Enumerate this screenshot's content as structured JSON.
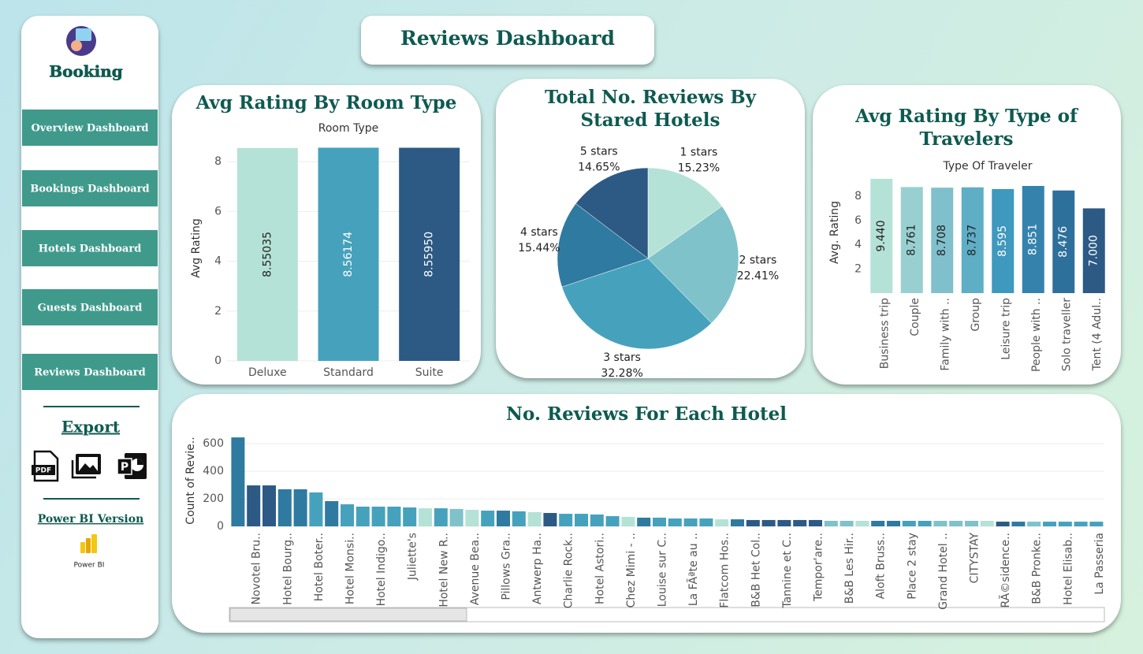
{
  "header": {
    "title": "Reviews Dashboard"
  },
  "sidebar": {
    "brand": "Booking",
    "nav": [
      "Overview Dashboard",
      "Bookings Dashboard",
      "Hotels Dashboard",
      "Guests Dashboard",
      "Reviews Dashboard"
    ],
    "export": {
      "title": "Export",
      "pdf": "PDF"
    },
    "powerbi": {
      "title": "Power BI Version",
      "logo_label": "Power BI"
    }
  },
  "chart_data": [
    {
      "type": "bar",
      "title": "Avg Rating By Room Type",
      "x_label": "Room Type",
      "y_label": "Avg Rating",
      "categories": [
        "Deluxe",
        "Standard",
        "Suite"
      ],
      "values": [
        8.55035,
        8.56174,
        8.5595
      ],
      "value_labels": [
        "8.55035",
        "8.56174",
        "8.55950"
      ],
      "colors": [
        "#b5e2d6",
        "#46a2bc",
        "#2c5a85"
      ],
      "ylim": [
        0,
        9
      ],
      "yticks": [
        0,
        2,
        4,
        6,
        8
      ],
      "grid": true
    },
    {
      "type": "pie",
      "title": "Total No. Reviews By Stared Hotels",
      "categories": [
        "1 stars",
        "2 stars",
        "3 stars",
        "4 stars",
        "5 stars"
      ],
      "values": [
        15.23,
        22.41,
        32.28,
        15.44,
        14.65
      ],
      "value_labels": [
        "15.23%",
        "22.41%",
        "32.28%",
        "15.44%",
        "14.65%"
      ],
      "colors": [
        "#b5e2d6",
        "#7fc2ca",
        "#46a2bc",
        "#2f7aa0",
        "#2c5a85"
      ]
    },
    {
      "type": "bar",
      "title": "Avg Rating By Type of Travelers",
      "x_label": "Type Of Traveler",
      "y_label": "Avg. Rating",
      "categories": [
        "Business trip",
        "Couple",
        "Family with ..",
        "Group",
        "Leisure trip",
        "People with ..",
        "Solo traveller",
        "Tent (4 Adul.."
      ],
      "values": [
        9.44,
        8.761,
        8.708,
        8.737,
        8.595,
        8.851,
        8.476,
        7.0
      ],
      "value_labels": [
        "9.440",
        "8.761",
        "8.708",
        "8.737",
        "8.595",
        "8.851",
        "8.476",
        "7.000"
      ],
      "colors": [
        "#b5e2d6",
        "#98d0d2",
        "#7fc0cc",
        "#5eaec6",
        "#3f98be",
        "#3583ad",
        "#2e709c",
        "#2c5a85"
      ],
      "ylim": [
        0,
        9.5
      ],
      "yticks": [
        2,
        4,
        6,
        8
      ],
      "grid": false
    },
    {
      "type": "bar",
      "title": "No. Reviews For Each Hotel",
      "y_label": "Count of Revie..",
      "categories": [
        null,
        "Novotel Bru..",
        null,
        "Hotel Bourg..",
        null,
        "Hotel Boter..",
        null,
        "Hotel Monsi..",
        null,
        "Hotel Indigo..",
        null,
        "Juliette's",
        null,
        "Hotel New R..",
        null,
        "Avenue Bea..",
        null,
        "Pillows Gra..",
        null,
        "Antwerp Ha..",
        null,
        "Charlie Rock..",
        null,
        "Hotel Astori..",
        null,
        "Chez Mimi - ..",
        null,
        "Louise sur C..",
        null,
        "La FÃªte au ..",
        null,
        "Flatcom Hos..",
        null,
        "B&B Het Col..",
        null,
        "Tannine et C..",
        null,
        "Tempor'are..",
        null,
        "B&B Les Hir..",
        null,
        "Aloft Bruss..",
        null,
        "Place 2 stay",
        null,
        "Grand Hotel ..",
        null,
        "CITYSTAY",
        null,
        "RÃ©sidence..",
        null,
        "B&B Pronke..",
        null,
        "Hotel Elisab..",
        null,
        "La Passeria"
      ],
      "values": [
        645,
        297,
        297,
        269,
        269,
        246,
        183,
        160,
        143,
        143,
        143,
        137,
        131,
        131,
        126,
        120,
        114,
        114,
        109,
        103,
        97,
        91,
        91,
        86,
        74,
        69,
        63,
        63,
        57,
        57,
        57,
        51,
        51,
        46,
        46,
        46,
        46,
        46,
        40,
        40,
        40,
        40,
        40,
        40,
        40,
        40,
        40,
        40,
        40,
        34,
        34,
        34,
        34,
        34,
        34,
        34
      ],
      "colors": [
        "#2f7aa0",
        "#2c5a85",
        "#2c5a85",
        "#2f7aa0",
        "#2f7aa0",
        "#46a2bc",
        "#2f7aa0",
        "#46a2bc",
        "#46a2bc",
        "#46a2bc",
        "#46a2bc",
        "#46a2bc",
        "#b5e2d6",
        "#46a2bc",
        "#7fc2ca",
        "#b5e2d6",
        "#46a2bc",
        "#2f7aa0",
        "#46a2bc",
        "#b5e2d6",
        "#2c5a85",
        "#46a2bc",
        "#46a2bc",
        "#46a2bc",
        "#46a2bc",
        "#b5e2d6",
        "#2f7aa0",
        "#46a2bc",
        "#46a2bc",
        "#46a2bc",
        "#46a2bc",
        "#b5e2d6",
        "#2f7aa0",
        "#2c5a85",
        "#2c5a85",
        "#2c5a85",
        "#2c5a85",
        "#2c5a85",
        "#7fc2ca",
        "#7fc2ca",
        "#b5e2d6",
        "#2f7aa0",
        "#2f7aa0",
        "#46a2bc",
        "#46a2bc",
        "#7fc2ca",
        "#7fc2ca",
        "#7fc2ca",
        "#b5e2d6",
        "#2c5a85",
        "#2f7aa0",
        "#7fc2ca",
        "#46a2bc",
        "#46a2bc",
        "#46a2bc",
        "#46a2bc"
      ],
      "ylim": [
        0,
        700
      ],
      "yticks": [
        0,
        200,
        400,
        600
      ],
      "grid": true
    }
  ]
}
